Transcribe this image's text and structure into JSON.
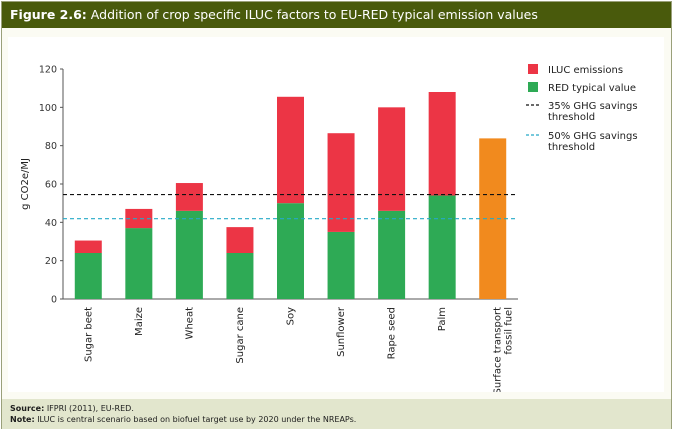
{
  "figure": {
    "label": "Figure 2.6:",
    "title": "Addition of crop specific ILUC factors to EU-RED typical emission values"
  },
  "footer": {
    "source_label": "Source:",
    "source_text": "IFPRI (2011), EU-RED.",
    "note_label": "Note:",
    "note_text": "ILUC is central scenario based on biofuel target use by 2020 under the NREAPs."
  },
  "colors": {
    "red_typical": "#2eaa55",
    "iluc": "#ec3545",
    "fossil": "#f18a1e",
    "threshold35": "#111111",
    "threshold50": "#26a9c8",
    "title_bar": "#495a0c"
  },
  "chart_data": {
    "type": "bar",
    "stacked": true,
    "ylabel": "g CO2e/MJ",
    "ylim": [
      0,
      120
    ],
    "yticks": [
      0,
      20,
      40,
      60,
      80,
      100,
      120
    ],
    "grid": false,
    "legend_position": "top-right",
    "categories": [
      "Sugar beet",
      "Maize",
      "Wheat",
      "Sugar cane",
      "Soy",
      "Sunflower",
      "Rape seed",
      "Palm",
      "Surface transport fossil fuel"
    ],
    "category_lines": [
      [
        "Sugar beet"
      ],
      [
        "Maize"
      ],
      [
        "Wheat"
      ],
      [
        "Sugar cane"
      ],
      [
        "Soy"
      ],
      [
        "Sunflower"
      ],
      [
        "Rape seed"
      ],
      [
        "Palm"
      ],
      [
        "Surface transport",
        "fossil fuel"
      ]
    ],
    "series": [
      {
        "name": "RED typical value",
        "color_key": "red_typical",
        "values": [
          24,
          37,
          46,
          24,
          50,
          35,
          46,
          54,
          null
        ]
      },
      {
        "name": "ILUC emissions",
        "color_key": "iluc",
        "values": [
          6.5,
          10,
          14.5,
          13.5,
          55.5,
          51.5,
          54,
          54,
          null
        ]
      },
      {
        "name": "Fossil fuel",
        "color_key": "fossil",
        "values": [
          null,
          null,
          null,
          null,
          null,
          null,
          null,
          null,
          83.8
        ]
      }
    ],
    "thresholds": [
      {
        "value": 54.5,
        "color_key": "threshold35",
        "lines": [
          "35% GHG savings",
          "threshold"
        ]
      },
      {
        "value": 41.9,
        "color_key": "threshold50",
        "lines": [
          "50% GHG savings",
          "threshold"
        ]
      }
    ],
    "legend": [
      {
        "label": "ILUC emissions",
        "type": "swatch",
        "color_key": "iluc"
      },
      {
        "label": "RED typical value",
        "type": "swatch",
        "color_key": "red_typical"
      },
      {
        "lines": [
          "35% GHG savings",
          "threshold"
        ],
        "type": "dashed",
        "color_key": "threshold35"
      },
      {
        "lines": [
          "50% GHG savings",
          "threshold"
        ],
        "type": "dashed",
        "color_key": "threshold50"
      }
    ]
  }
}
